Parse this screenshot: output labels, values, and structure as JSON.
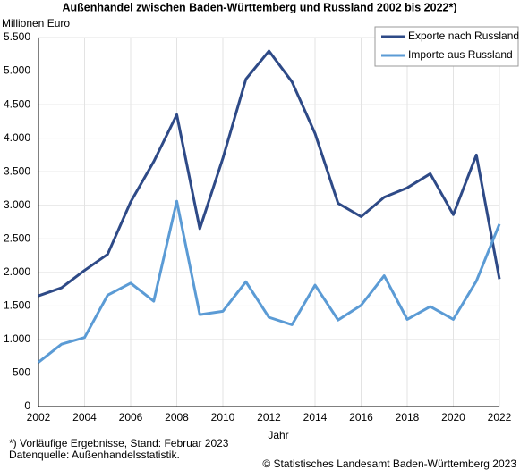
{
  "chart_data": {
    "type": "line",
    "title": "Außenhandel zwischen Baden-Württemberg und Russland 2002 bis 2022*)",
    "y_label": "Millionen Euro",
    "x_label": "Jahr",
    "x": [
      2002,
      2003,
      2004,
      2005,
      2006,
      2007,
      2008,
      2009,
      2010,
      2011,
      2012,
      2013,
      2014,
      2015,
      2016,
      2017,
      2018,
      2019,
      2020,
      2021,
      2022
    ],
    "series": [
      {
        "name": "Exporte nach Russland",
        "color": "#2e4a87",
        "values": [
          1650,
          1770,
          2030,
          2270,
          3050,
          3650,
          4350,
          2650,
          3700,
          4880,
          5300,
          4840,
          4070,
          3030,
          2830,
          3120,
          3260,
          3470,
          2860,
          3750,
          1900
        ]
      },
      {
        "name": "Importe aus Russland",
        "color": "#5b9bd5",
        "values": [
          660,
          930,
          1030,
          1660,
          1840,
          1570,
          3060,
          1370,
          1420,
          1860,
          1330,
          1220,
          1810,
          1290,
          1510,
          1950,
          1300,
          1490,
          1300,
          1870,
          2720
        ]
      }
    ],
    "xlim": [
      2002,
      2022
    ],
    "xticks": [
      2002,
      2004,
      2006,
      2008,
      2010,
      2012,
      2014,
      2016,
      2018,
      2020,
      2022
    ],
    "ylim": [
      0,
      5500
    ],
    "yticks": [
      0,
      500,
      {
        "value": 1000,
        "label": "1.000"
      },
      {
        "value": 1500,
        "label": "1.500"
      },
      {
        "value": 2000,
        "label": "2.000"
      },
      {
        "value": 2500,
        "label": "2.500"
      },
      {
        "value": 3000,
        "label": "3.000"
      },
      {
        "value": 3500,
        "label": "3.500"
      },
      {
        "value": 4000,
        "label": "4.000"
      },
      {
        "value": 4500,
        "label": "4.500"
      },
      {
        "value": 5000,
        "label": "5.000"
      },
      {
        "value": 5500,
        "label": "5.500"
      }
    ],
    "grid": true,
    "legend": "top-right",
    "footnote": "*) Vorläufige Ergebnisse, Stand: Februar 2023",
    "source": "Datenquelle: Außenhandelsstatistik.",
    "copyright": "© Statistisches Landesamt Baden-Württemberg 2023"
  }
}
